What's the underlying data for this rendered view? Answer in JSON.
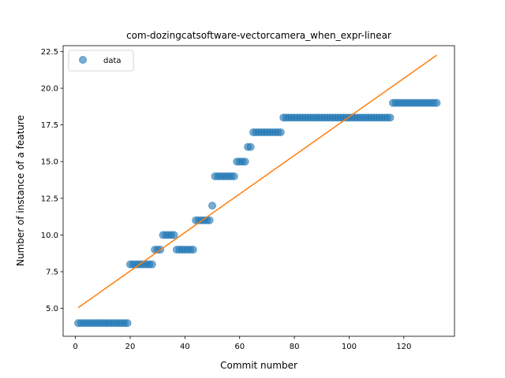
{
  "chart_data": {
    "type": "scatter",
    "title": "com-dozingcatsoftware-vectorcamera_when_expr-linear",
    "xlabel": "Commit number",
    "ylabel": "Number of instance of a feature",
    "xlim": [
      -4.5,
      138.5
    ],
    "ylim": [
      3.1,
      22.9
    ],
    "xticks": [
      0,
      20,
      40,
      60,
      80,
      100,
      120
    ],
    "yticks": [
      5.0,
      7.5,
      10.0,
      12.5,
      15.0,
      17.5,
      20.0,
      22.5
    ],
    "ytick_labels": [
      "5.0",
      "7.5",
      "10.0",
      "12.5",
      "15.0",
      "17.5",
      "20.0",
      "22.5"
    ],
    "legend": {
      "position": "top-left",
      "entries": [
        "data"
      ]
    },
    "grid": false,
    "colors": {
      "data": "#1f77b4",
      "fit": "#ff7f0e"
    },
    "series": [
      {
        "name": "data",
        "kind": "scatter",
        "points": [
          [
            1,
            4
          ],
          [
            2,
            4
          ],
          [
            3,
            4
          ],
          [
            4,
            4
          ],
          [
            5,
            4
          ],
          [
            6,
            4
          ],
          [
            7,
            4
          ],
          [
            8,
            4
          ],
          [
            9,
            4
          ],
          [
            10,
            4
          ],
          [
            11,
            4
          ],
          [
            12,
            4
          ],
          [
            13,
            4
          ],
          [
            14,
            4
          ],
          [
            15,
            4
          ],
          [
            16,
            4
          ],
          [
            17,
            4
          ],
          [
            18,
            4
          ],
          [
            19,
            4
          ],
          [
            20,
            8
          ],
          [
            21,
            8
          ],
          [
            22,
            8
          ],
          [
            23,
            8
          ],
          [
            24,
            8
          ],
          [
            25,
            8
          ],
          [
            26,
            8
          ],
          [
            27,
            8
          ],
          [
            28,
            8
          ],
          [
            29,
            9
          ],
          [
            30,
            9
          ],
          [
            31,
            9
          ],
          [
            32,
            10
          ],
          [
            33,
            10
          ],
          [
            34,
            10
          ],
          [
            35,
            10
          ],
          [
            36,
            10
          ],
          [
            37,
            9
          ],
          [
            38,
            9
          ],
          [
            39,
            9
          ],
          [
            40,
            9
          ],
          [
            41,
            9
          ],
          [
            42,
            9
          ],
          [
            43,
            9
          ],
          [
            44,
            11
          ],
          [
            45,
            11
          ],
          [
            46,
            11
          ],
          [
            47,
            11
          ],
          [
            48,
            11
          ],
          [
            49,
            11
          ],
          [
            50,
            12
          ],
          [
            51,
            14
          ],
          [
            52,
            14
          ],
          [
            53,
            14
          ],
          [
            54,
            14
          ],
          [
            55,
            14
          ],
          [
            56,
            14
          ],
          [
            57,
            14
          ],
          [
            58,
            14
          ],
          [
            59,
            15
          ],
          [
            60,
            15
          ],
          [
            61,
            15
          ],
          [
            62,
            15
          ],
          [
            63,
            16
          ],
          [
            64,
            16
          ],
          [
            65,
            17
          ],
          [
            66,
            17
          ],
          [
            67,
            17
          ],
          [
            68,
            17
          ],
          [
            69,
            17
          ],
          [
            70,
            17
          ],
          [
            71,
            17
          ],
          [
            72,
            17
          ],
          [
            73,
            17
          ],
          [
            74,
            17
          ],
          [
            75,
            17
          ],
          [
            76,
            18
          ],
          [
            77,
            18
          ],
          [
            78,
            18
          ],
          [
            79,
            18
          ],
          [
            80,
            18
          ],
          [
            81,
            18
          ],
          [
            82,
            18
          ],
          [
            83,
            18
          ],
          [
            84,
            18
          ],
          [
            85,
            18
          ],
          [
            86,
            18
          ],
          [
            87,
            18
          ],
          [
            88,
            18
          ],
          [
            89,
            18
          ],
          [
            90,
            18
          ],
          [
            91,
            18
          ],
          [
            92,
            18
          ],
          [
            93,
            18
          ],
          [
            94,
            18
          ],
          [
            95,
            18
          ],
          [
            96,
            18
          ],
          [
            97,
            18
          ],
          [
            98,
            18
          ],
          [
            99,
            18
          ],
          [
            100,
            18
          ],
          [
            101,
            18
          ],
          [
            102,
            18
          ],
          [
            103,
            18
          ],
          [
            104,
            18
          ],
          [
            105,
            18
          ],
          [
            106,
            18
          ],
          [
            107,
            18
          ],
          [
            108,
            18
          ],
          [
            109,
            18
          ],
          [
            110,
            18
          ],
          [
            111,
            18
          ],
          [
            112,
            18
          ],
          [
            113,
            18
          ],
          [
            114,
            18
          ],
          [
            115,
            18
          ],
          [
            116,
            19
          ],
          [
            117,
            19
          ],
          [
            118,
            19
          ],
          [
            119,
            19
          ],
          [
            120,
            19
          ],
          [
            121,
            19
          ],
          [
            122,
            19
          ],
          [
            123,
            19
          ],
          [
            124,
            19
          ],
          [
            125,
            19
          ],
          [
            126,
            19
          ],
          [
            127,
            19
          ],
          [
            128,
            19
          ],
          [
            129,
            19
          ],
          [
            130,
            19
          ],
          [
            131,
            19
          ],
          [
            132,
            19
          ]
        ]
      },
      {
        "kind": "line",
        "points": [
          [
            1,
            5.05
          ],
          [
            132,
            22.25
          ]
        ]
      }
    ]
  }
}
